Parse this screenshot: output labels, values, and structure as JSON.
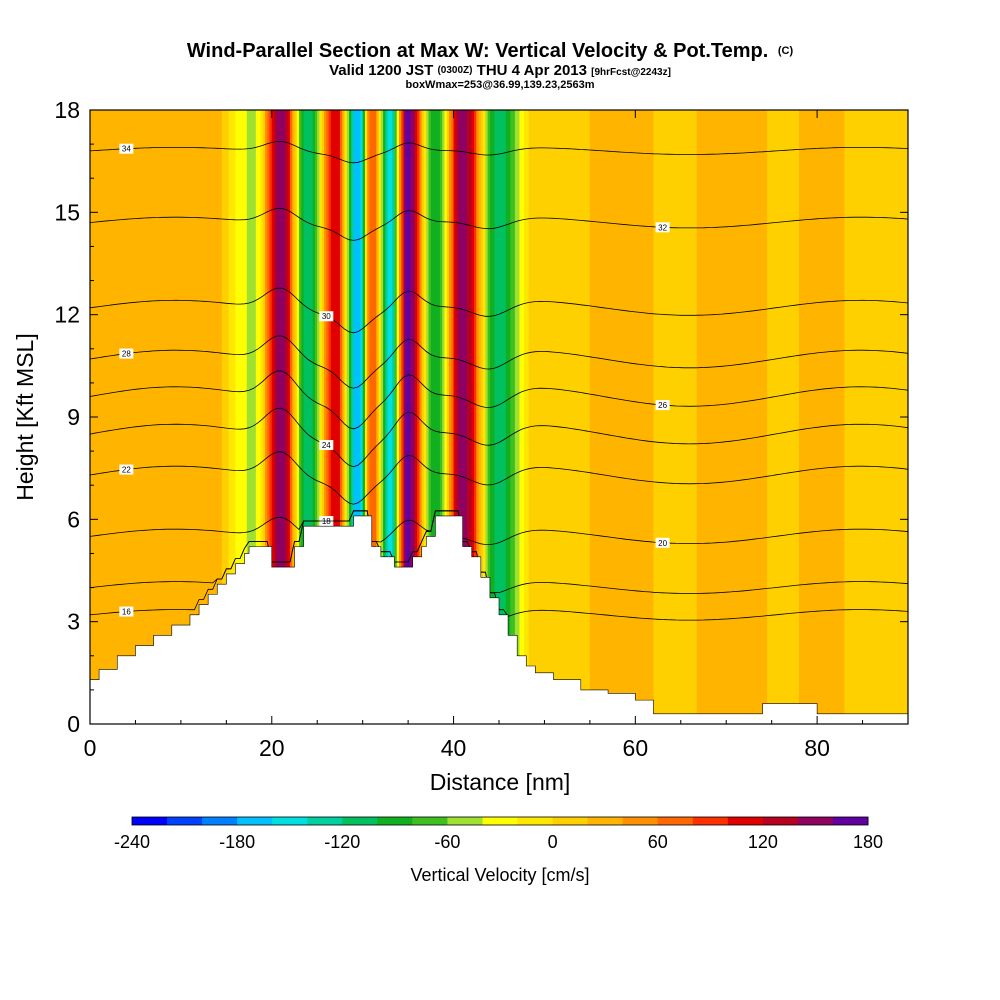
{
  "chart_data": {
    "type": "heatmap",
    "title": "Wind-Parallel Section at Max W: Vertical Velocity & Pot.Temp.",
    "title_mark": "(C)",
    "subtitle": {
      "part1": "Valid 1200 JST",
      "part2": "(0300Z)",
      "part3": "THU 4 Apr 2013",
      "part4": "[9hrFcst@2243z]"
    },
    "subtitle2": "boxWmax=253@36.99,139.23,2563m",
    "xlabel": "Distance [nm]",
    "ylabel": "Height [Kft MSL]",
    "xlim": [
      0,
      90
    ],
    "ylim": [
      0,
      18
    ],
    "xticks": [
      "0",
      "20",
      "40",
      "60",
      "80"
    ],
    "yticks": [
      "0",
      "3",
      "6",
      "9",
      "12",
      "15",
      "18"
    ],
    "colorbar": {
      "label": "Vertical Velocity [cm/s]",
      "tick_labels": [
        "-240",
        "-180",
        "-120",
        "-60",
        "0",
        "60",
        "120",
        "180"
      ],
      "range": [
        -240,
        180
      ],
      "colors": [
        "#0000ff",
        "#0040ff",
        "#0080ff",
        "#00c0ff",
        "#00e0e0",
        "#00d0a0",
        "#00c060",
        "#10b020",
        "#40c020",
        "#a0e030",
        "#ffff00",
        "#ffe800",
        "#ffd000",
        "#ffb400",
        "#ff9000",
        "#ff6800",
        "#ff3000",
        "#e00000",
        "#b80020",
        "#900060",
        "#6000a0"
      ]
    },
    "terrain": [
      [
        0,
        1.3
      ],
      [
        1,
        1.3
      ],
      [
        1,
        1.6
      ],
      [
        3,
        1.6
      ],
      [
        3,
        2.0
      ],
      [
        5,
        2.0
      ],
      [
        5,
        2.3
      ],
      [
        7,
        2.3
      ],
      [
        7,
        2.6
      ],
      [
        9,
        2.6
      ],
      [
        9,
        2.9
      ],
      [
        11,
        2.9
      ],
      [
        11,
        3.2
      ],
      [
        12,
        3.2
      ],
      [
        12,
        3.5
      ],
      [
        13,
        3.5
      ],
      [
        13,
        3.8
      ],
      [
        14,
        3.8
      ],
      [
        14,
        4.1
      ],
      [
        15,
        4.1
      ],
      [
        15,
        4.4
      ],
      [
        16,
        4.4
      ],
      [
        16,
        4.7
      ],
      [
        17,
        4.7
      ],
      [
        17,
        5.0
      ],
      [
        17.5,
        5.0
      ],
      [
        17.5,
        5.2
      ],
      [
        20,
        5.2
      ],
      [
        20,
        4.6
      ],
      [
        22.5,
        4.6
      ],
      [
        22.5,
        5.2
      ],
      [
        23.5,
        5.2
      ],
      [
        23.5,
        5.8
      ],
      [
        29,
        5.8
      ],
      [
        29,
        6.1
      ],
      [
        31,
        6.1
      ],
      [
        31,
        5.2
      ],
      [
        32,
        5.2
      ],
      [
        32,
        4.9
      ],
      [
        33.5,
        4.9
      ],
      [
        33.5,
        4.6
      ],
      [
        35.5,
        4.6
      ],
      [
        35.5,
        4.9
      ],
      [
        36.5,
        4.9
      ],
      [
        36.5,
        5.2
      ],
      [
        37,
        5.2
      ],
      [
        37,
        5.5
      ],
      [
        38,
        5.5
      ],
      [
        38,
        6.1
      ],
      [
        41,
        6.1
      ],
      [
        41,
        5.2
      ],
      [
        42,
        5.2
      ],
      [
        42,
        4.9
      ],
      [
        43,
        4.9
      ],
      [
        43,
        4.3
      ],
      [
        44,
        4.3
      ],
      [
        44,
        3.7
      ],
      [
        45,
        3.7
      ],
      [
        45,
        3.2
      ],
      [
        46,
        3.2
      ],
      [
        46,
        2.6
      ],
      [
        47,
        2.6
      ],
      [
        47,
        2.0
      ],
      [
        48,
        2.0
      ],
      [
        48,
        1.7
      ],
      [
        49,
        1.7
      ],
      [
        49,
        1.5
      ],
      [
        51,
        1.5
      ],
      [
        51,
        1.3
      ],
      [
        54,
        1.3
      ],
      [
        54,
        1.0
      ],
      [
        57,
        1.0
      ],
      [
        57,
        0.9
      ],
      [
        60,
        0.9
      ],
      [
        60,
        0.7
      ],
      [
        62,
        0.7
      ],
      [
        62,
        0.3
      ],
      [
        74,
        0.3
      ],
      [
        74,
        0.6
      ],
      [
        80,
        0.6
      ],
      [
        80,
        0.3
      ],
      [
        90,
        0.3
      ]
    ],
    "w_field": [
      {
        "x": 7,
        "w": 25
      },
      {
        "x": 13,
        "w": 35
      },
      {
        "x": 18,
        "w": -45
      },
      {
        "x": 21,
        "w": 160
      },
      {
        "x": 24,
        "w": -120
      },
      {
        "x": 27,
        "w": 120
      },
      {
        "x": 29.5,
        "w": -180
      },
      {
        "x": 31,
        "w": 80
      },
      {
        "x": 33,
        "w": -150
      },
      {
        "x": 35,
        "w": 170
      },
      {
        "x": 38,
        "w": -100
      },
      {
        "x": 41,
        "w": 150
      },
      {
        "x": 45,
        "w": -110
      },
      {
        "x": 49,
        "w": 10
      },
      {
        "x": 55,
        "w": 20
      },
      {
        "x": 60,
        "w": 35
      },
      {
        "x": 64,
        "w": 5
      },
      {
        "x": 68,
        "w": 25
      },
      {
        "x": 72,
        "w": 40
      },
      {
        "x": 76,
        "w": 10
      },
      {
        "x": 80,
        "w": 30
      },
      {
        "x": 85,
        "w": 15
      }
    ],
    "theta_contours": [
      {
        "level": 16,
        "label": "16",
        "base_height": 3.2
      },
      {
        "level": 18,
        "label": "18",
        "base_height": 4.0
      },
      {
        "level": 20,
        "label": "20",
        "base_height": 5.5
      },
      {
        "level": 22,
        "label": "22",
        "base_height": 7.3
      },
      {
        "level": 24,
        "label": "24",
        "base_height": 8.5
      },
      {
        "level": 26,
        "label": "26",
        "base_height": 9.6
      },
      {
        "level": 28,
        "label": "28",
        "base_height": 10.7
      },
      {
        "level": 30,
        "label": "30",
        "base_height": 12.2
      },
      {
        "level": 32,
        "label": "32",
        "base_height": 14.7
      },
      {
        "level": 34,
        "label": "34",
        "base_height": 16.8
      }
    ]
  }
}
